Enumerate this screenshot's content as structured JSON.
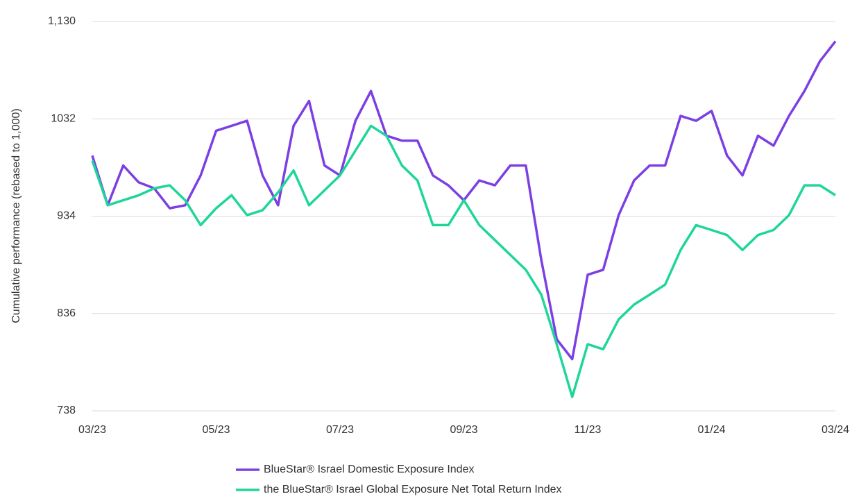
{
  "chart_data": {
    "type": "line",
    "y_label": "Cumulative performance (rebased to 1,000)",
    "categories": [
      "03/23",
      null,
      null,
      null,
      null,
      null,
      null,
      null,
      "05/23",
      null,
      null,
      null,
      null,
      null,
      null,
      null,
      "07/23",
      null,
      null,
      null,
      null,
      null,
      null,
      null,
      "09/23",
      null,
      null,
      null,
      null,
      null,
      null,
      null,
      "11/23",
      null,
      null,
      null,
      null,
      null,
      null,
      null,
      "01/24",
      null,
      null,
      null,
      null,
      null,
      null,
      null,
      "03/24"
    ],
    "series": [
      {
        "name": "BlueStar® Israel Domestic Exposure Index",
        "color": "#7b3fe4",
        "values": [
          995,
          945,
          985,
          968,
          962,
          942,
          945,
          975,
          1020,
          1025,
          1030,
          975,
          945,
          1025,
          1050,
          985,
          975,
          1030,
          1060,
          1015,
          1010,
          1010,
          975,
          965,
          950,
          970,
          965,
          985,
          985,
          890,
          810,
          790,
          875,
          880,
          935,
          970,
          985,
          985,
          1035,
          1030,
          1040,
          995,
          975,
          1015,
          1005,
          1035,
          1060,
          1090,
          1110
        ]
      },
      {
        "name": "the BlueStar® Israel Global Exposure Net Total Return Index",
        "color": "#1ed69a",
        "values": [
          990,
          945,
          950,
          955,
          962,
          965,
          950,
          925,
          942,
          955,
          935,
          940,
          958,
          980,
          945,
          960,
          975,
          1000,
          1025,
          1015,
          985,
          970,
          925,
          925,
          950,
          925,
          910,
          895,
          880,
          855,
          805,
          752,
          805,
          800,
          830,
          845,
          855,
          865,
          900,
          925,
          920,
          915,
          900,
          915,
          920,
          935,
          965,
          965,
          955
        ]
      }
    ],
    "ylim": [
      738,
      1130
    ],
    "yticks": [
      738,
      836,
      934,
      1032,
      {
        "value": 1130,
        "label": "1,130"
      }
    ],
    "grid": true
  }
}
